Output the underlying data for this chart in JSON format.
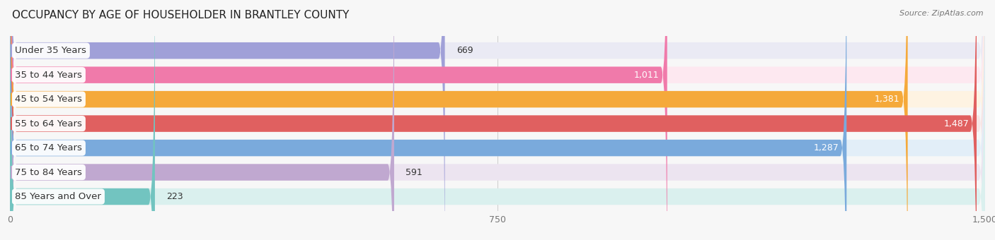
{
  "title": "OCCUPANCY BY AGE OF HOUSEHOLDER IN BRANTLEY COUNTY",
  "source": "Source: ZipAtlas.com",
  "categories": [
    "Under 35 Years",
    "35 to 44 Years",
    "45 to 54 Years",
    "55 to 64 Years",
    "65 to 74 Years",
    "75 to 84 Years",
    "85 Years and Over"
  ],
  "values": [
    669,
    1011,
    1381,
    1487,
    1287,
    591,
    223
  ],
  "bar_colors": [
    "#a0a0d8",
    "#f07aaa",
    "#f5a93a",
    "#e06060",
    "#7aaadc",
    "#c0a8d0",
    "#72c4c0"
  ],
  "bar_bg_colors": [
    "#eaeaf4",
    "#fde8f0",
    "#fef3e2",
    "#f8e4e4",
    "#e2eef8",
    "#ece4f0",
    "#daf0ee"
  ],
  "xlim_max": 1500,
  "xticks": [
    0,
    750,
    1500
  ],
  "xtick_labels": [
    "0",
    "750",
    "1,500"
  ],
  "title_fontsize": 11,
  "label_fontsize": 9.5,
  "value_fontsize": 9,
  "bg_color": "#f7f7f7",
  "bar_height": 0.68,
  "value_threshold": 800,
  "outside_value_color": "#333333",
  "inside_value_color": "#ffffff"
}
